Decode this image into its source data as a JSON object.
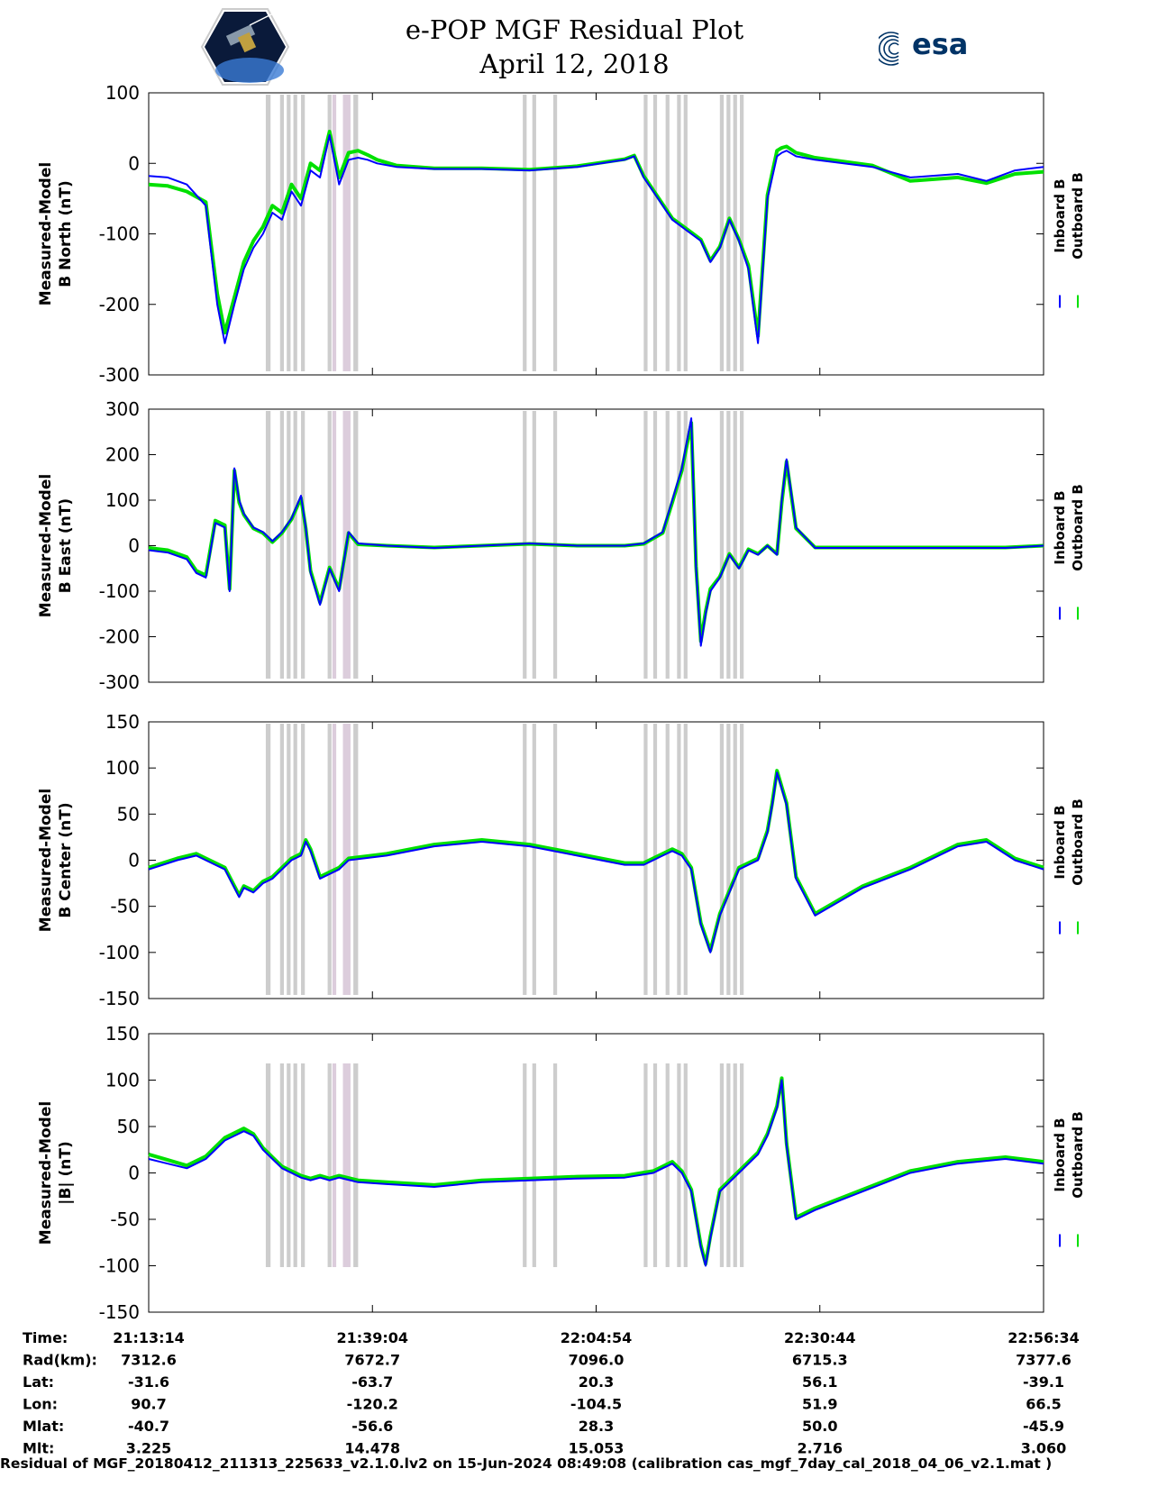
{
  "header": {
    "title": "e-POP MGF Residual Plot",
    "subtitle": "April 12, 2018",
    "mission_logo": "cassiope-satellite-logo",
    "agency_logo": "esa-logo",
    "agency_logo_text": "esa"
  },
  "legend": {
    "inboard": "Inboard B",
    "outboard": "Outboard B",
    "inboard_color": "#0000ff",
    "outboard_color": "#00e000"
  },
  "colors": {
    "shade": "#c8c8c8",
    "shade_pink": "#d8c8d8",
    "inboard": "#0000ff",
    "outboard": "#00e000"
  },
  "chart_data": [
    {
      "type": "line",
      "ylabel": [
        "Measured-Model",
        "B North (nT)"
      ],
      "ylim": [
        -300,
        100
      ],
      "yticks": [
        100,
        0,
        -100,
        -200,
        -300
      ],
      "x": [
        0,
        20,
        40,
        60,
        65,
        72,
        80,
        90,
        100,
        110,
        120,
        130,
        140,
        150,
        160,
        170,
        180,
        190,
        200,
        210,
        220,
        230,
        240,
        260,
        300,
        350,
        400,
        450,
        500,
        510,
        520,
        530,
        540,
        550,
        560,
        570,
        580,
        590,
        600,
        610,
        620,
        630,
        640,
        650,
        660,
        665,
        670,
        680,
        700,
        760,
        800,
        850,
        880,
        910,
        940
      ],
      "series": [
        {
          "name": "Inboard B",
          "values": [
            -18,
            -20,
            -30,
            -60,
            -120,
            -200,
            -255,
            -200,
            -150,
            -120,
            -100,
            -70,
            -80,
            -40,
            -60,
            -10,
            -20,
            40,
            -30,
            5,
            8,
            5,
            0,
            -5,
            -8,
            -8,
            -10,
            -5,
            5,
            10,
            -20,
            -40,
            -60,
            -80,
            -90,
            -100,
            -110,
            -140,
            -120,
            -80,
            -110,
            -150,
            -255,
            -50,
            10,
            15,
            18,
            10,
            5,
            -5,
            -20,
            -15,
            -25,
            -10,
            -5
          ]
        },
        {
          "name": "Outboard B",
          "values": [
            -30,
            -32,
            -40,
            -55,
            -110,
            -185,
            -240,
            -190,
            -140,
            -110,
            -90,
            -60,
            -70,
            -30,
            -50,
            0,
            -10,
            45,
            -20,
            15,
            18,
            12,
            5,
            -3,
            -7,
            -7,
            -9,
            -4,
            6,
            11,
            -18,
            -38,
            -58,
            -78,
            -88,
            -98,
            -108,
            -138,
            -118,
            -78,
            -108,
            -145,
            -245,
            -45,
            18,
            22,
            24,
            15,
            8,
            -3,
            -25,
            -20,
            -28,
            -15,
            -12
          ]
        }
      ]
    },
    {
      "type": "line",
      "ylabel": [
        "Measured-Model",
        "B East (nT)"
      ],
      "ylim": [
        -300,
        300
      ],
      "yticks": [
        300,
        200,
        100,
        0,
        -100,
        -200,
        -300
      ],
      "x": [
        0,
        20,
        40,
        50,
        60,
        70,
        80,
        85,
        90,
        95,
        100,
        110,
        120,
        130,
        140,
        150,
        160,
        165,
        170,
        180,
        190,
        200,
        210,
        220,
        250,
        300,
        350,
        400,
        450,
        500,
        520,
        540,
        550,
        560,
        570,
        575,
        580,
        585,
        590,
        600,
        610,
        620,
        630,
        640,
        650,
        660,
        665,
        670,
        680,
        700,
        800,
        900,
        940
      ],
      "series": [
        {
          "name": "Inboard B",
          "values": [
            -10,
            -15,
            -30,
            -60,
            -70,
            50,
            40,
            -100,
            170,
            100,
            70,
            40,
            30,
            10,
            30,
            60,
            110,
            40,
            -60,
            -130,
            -50,
            -100,
            30,
            5,
            0,
            -5,
            0,
            5,
            0,
            0,
            5,
            30,
            100,
            170,
            280,
            -50,
            -220,
            -150,
            -100,
            -70,
            -20,
            -50,
            -10,
            -20,
            0,
            -20,
            100,
            190,
            40,
            -5,
            -5,
            -5,
            0
          ]
        },
        {
          "name": "Outboard B",
          "values": [
            -5,
            -10,
            -25,
            -55,
            -65,
            55,
            45,
            -95,
            165,
            95,
            68,
            38,
            28,
            8,
            28,
            58,
            105,
            38,
            -55,
            -125,
            -48,
            -95,
            28,
            3,
            0,
            -4,
            0,
            4,
            0,
            0,
            4,
            28,
            95,
            165,
            270,
            -45,
            -210,
            -145,
            -95,
            -68,
            -18,
            -48,
            -8,
            -18,
            0,
            -18,
            95,
            185,
            38,
            -4,
            -4,
            -4,
            0
          ]
        }
      ]
    },
    {
      "type": "line",
      "ylabel": [
        "Measured-Model",
        "B Center (nT)"
      ],
      "ylim": [
        -150,
        150
      ],
      "yticks": [
        150,
        100,
        50,
        0,
        -50,
        -100,
        -150
      ],
      "x": [
        0,
        30,
        50,
        70,
        80,
        90,
        95,
        100,
        110,
        120,
        130,
        140,
        150,
        160,
        165,
        170,
        180,
        190,
        200,
        210,
        250,
        300,
        350,
        400,
        450,
        500,
        520,
        540,
        550,
        560,
        570,
        575,
        580,
        590,
        600,
        620,
        640,
        650,
        655,
        660,
        670,
        680,
        700,
        750,
        800,
        850,
        880,
        910,
        940
      ],
      "series": [
        {
          "name": "Inboard B",
          "values": [
            -10,
            0,
            5,
            -5,
            -10,
            -30,
            -40,
            -30,
            -35,
            -25,
            -20,
            -10,
            0,
            5,
            20,
            10,
            -20,
            -15,
            -10,
            0,
            5,
            15,
            20,
            15,
            5,
            -5,
            -5,
            5,
            10,
            5,
            -10,
            -40,
            -70,
            -100,
            -60,
            -10,
            0,
            30,
            60,
            95,
            60,
            -20,
            -60,
            -30,
            -10,
            15,
            20,
            0,
            -10
          ]
        },
        {
          "name": "Outboard B",
          "values": [
            -8,
            2,
            7,
            -3,
            -8,
            -28,
            -38,
            -28,
            -33,
            -23,
            -18,
            -8,
            2,
            7,
            22,
            12,
            -18,
            -13,
            -8,
            2,
            7,
            17,
            22,
            17,
            7,
            -3,
            -3,
            7,
            12,
            7,
            -8,
            -38,
            -68,
            -98,
            -58,
            -8,
            2,
            32,
            62,
            97,
            62,
            -18,
            -58,
            -28,
            -8,
            17,
            22,
            2,
            -8
          ]
        }
      ]
    },
    {
      "type": "line",
      "ylabel": [
        "Measured-Model",
        "|B| (nT)"
      ],
      "ylim": [
        -150,
        150
      ],
      "yticks": [
        150,
        100,
        50,
        0,
        -50,
        -100,
        -150
      ],
      "x": [
        0,
        20,
        40,
        60,
        80,
        100,
        110,
        120,
        130,
        140,
        150,
        160,
        170,
        180,
        190,
        200,
        220,
        250,
        300,
        350,
        400,
        450,
        500,
        530,
        540,
        550,
        560,
        570,
        575,
        580,
        585,
        590,
        600,
        620,
        640,
        650,
        660,
        665,
        670,
        680,
        700,
        750,
        800,
        850,
        900,
        940
      ],
      "series": [
        {
          "name": "Inboard B",
          "values": [
            15,
            10,
            5,
            15,
            35,
            45,
            40,
            25,
            15,
            5,
            0,
            -5,
            -8,
            -5,
            -8,
            -5,
            -10,
            -12,
            -15,
            -10,
            -8,
            -6,
            -5,
            0,
            5,
            10,
            0,
            -20,
            -50,
            -80,
            -100,
            -70,
            -20,
            0,
            20,
            40,
            70,
            100,
            30,
            -50,
            -40,
            -20,
            0,
            10,
            15,
            10
          ]
        },
        {
          "name": "Outboard B",
          "values": [
            20,
            14,
            8,
            18,
            38,
            48,
            42,
            27,
            17,
            7,
            2,
            -3,
            -6,
            -3,
            -6,
            -3,
            -8,
            -10,
            -13,
            -8,
            -6,
            -4,
            -3,
            2,
            7,
            12,
            2,
            -18,
            -48,
            -78,
            -98,
            -68,
            -18,
            2,
            22,
            42,
            72,
            102,
            32,
            -48,
            -38,
            -18,
            2,
            12,
            17,
            12
          ]
        }
      ]
    }
  ],
  "shaded_intervals": [
    [
      123,
      128
    ],
    [
      138,
      142
    ],
    [
      145,
      149
    ],
    [
      152,
      156
    ],
    [
      160,
      164
    ],
    [
      188,
      192
    ],
    [
      193,
      197
    ],
    [
      204,
      212
    ],
    [
      215,
      220
    ],
    [
      393,
      397
    ],
    [
      403,
      407
    ],
    [
      425,
      429
    ],
    [
      520,
      524
    ],
    [
      530,
      534
    ],
    [
      543,
      547
    ],
    [
      555,
      559
    ],
    [
      562,
      566
    ],
    [
      600,
      604
    ],
    [
      607,
      611
    ],
    [
      614,
      618
    ],
    [
      621,
      625
    ]
  ],
  "footer_table": {
    "labels": [
      "Time:",
      "Rad(km):",
      "Lat:",
      "Lon:",
      "Mlat:",
      "Mlt:"
    ],
    "columns": [
      [
        "21:13:14",
        "7312.6",
        "-31.6",
        "90.7",
        "-40.7",
        "3.225"
      ],
      [
        "21:39:04",
        "7672.7",
        "-63.7",
        "-120.2",
        "-56.6",
        "14.478"
      ],
      [
        "22:04:54",
        "7096.0",
        "20.3",
        "-104.5",
        "28.3",
        "15.053"
      ],
      [
        "22:30:44",
        "6715.3",
        "56.1",
        "51.9",
        "50.0",
        "2.716"
      ],
      [
        "22:56:34",
        "7377.6",
        "-39.1",
        "66.5",
        "-45.9",
        "3.060"
      ]
    ]
  },
  "footer": "Residual of MGF_20180412_211313_225633_v2.1.0.lv2 on 15-Jun-2024 08:49:08 (calibration cas_mgf_7day_cal_2018_04_06_v2.1.mat )"
}
